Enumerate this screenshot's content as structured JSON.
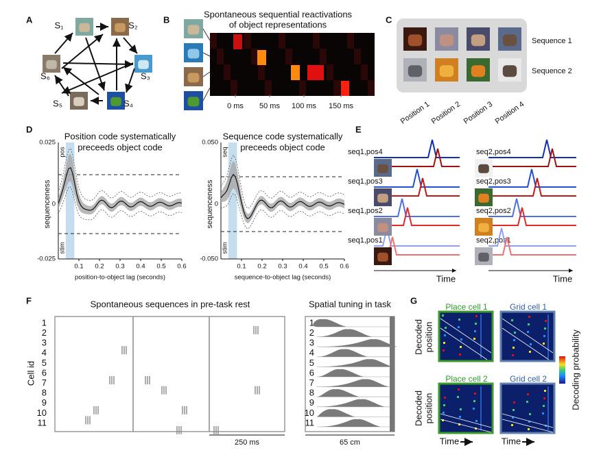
{
  "panel_letters": [
    "A",
    "B",
    "C",
    "D",
    "E",
    "F",
    "G"
  ],
  "panel_a": {
    "states": [
      "S₁",
      "S₂",
      "S₃",
      "S₄",
      "S₅",
      "S₆"
    ]
  },
  "panel_b": {
    "title": [
      "Spontaneous sequential reactivations",
      "of object representations"
    ],
    "ticks": [
      "0 ms",
      "50 ms",
      "100 ms",
      "150 ms"
    ]
  },
  "panel_c": {
    "rows": [
      "Sequence 1",
      "Sequence 2"
    ],
    "positions": [
      "Position 1",
      "Position 2",
      "Position 3",
      "Position 4"
    ]
  },
  "panel_d": {
    "plots": [
      {
        "title": [
          "Position code systematically",
          "preceeds object code"
        ],
        "ylabel": "sequenceness",
        "yticks": [
          "0.025",
          "0",
          "-0.025"
        ],
        "top": "pos",
        "bottom": "stim",
        "xticks": [
          "0.1",
          "0.2",
          "0.3",
          "0.4",
          "0.5",
          "0.6"
        ],
        "xlabel": "position-to-object lag (seconds)"
      },
      {
        "title": [
          "Sequence code systematically",
          "preceeds object code"
        ],
        "ylabel": "sequenceness",
        "yticks": [
          "0.050",
          "0",
          "-0.050"
        ],
        "top": "seq",
        "bottom": "stim",
        "xticks": [
          "0.1",
          "0.2",
          "0.3",
          "0.4",
          "0.5",
          "0.6"
        ],
        "xlabel": "sequence-to-object lag (seconds)"
      }
    ]
  },
  "panel_e": {
    "groups": [
      {
        "labels": [
          "seq1,pos4",
          "seq1,pos3",
          "seq1,pos2",
          "seq1,pos1"
        ],
        "xlabel": "Time"
      },
      {
        "labels": [
          "seq2,pos4",
          "seq2,pos3",
          "seq2,pos2",
          "seq2,pos1"
        ],
        "xlabel": "Time"
      }
    ]
  },
  "panel_f": {
    "left_title": "Spontaneous sequences in pre-task rest",
    "right_title": "Spatial tuning in task",
    "ylabel": "Cell id",
    "cells": [
      "1",
      "2",
      "3",
      "4",
      "5",
      "6",
      "7",
      "8",
      "9",
      "10",
      "11"
    ],
    "left_scale": "250 ms",
    "right_scale": "65 cm"
  },
  "panel_g": {
    "panels": [
      "Place cell 1",
      "Grid cell 1",
      "Place cell 2",
      "Grid cell 2"
    ],
    "ylabel": [
      "Decoded",
      "position"
    ],
    "xlabel": "Time",
    "colorbar": "Decoding probability"
  }
}
